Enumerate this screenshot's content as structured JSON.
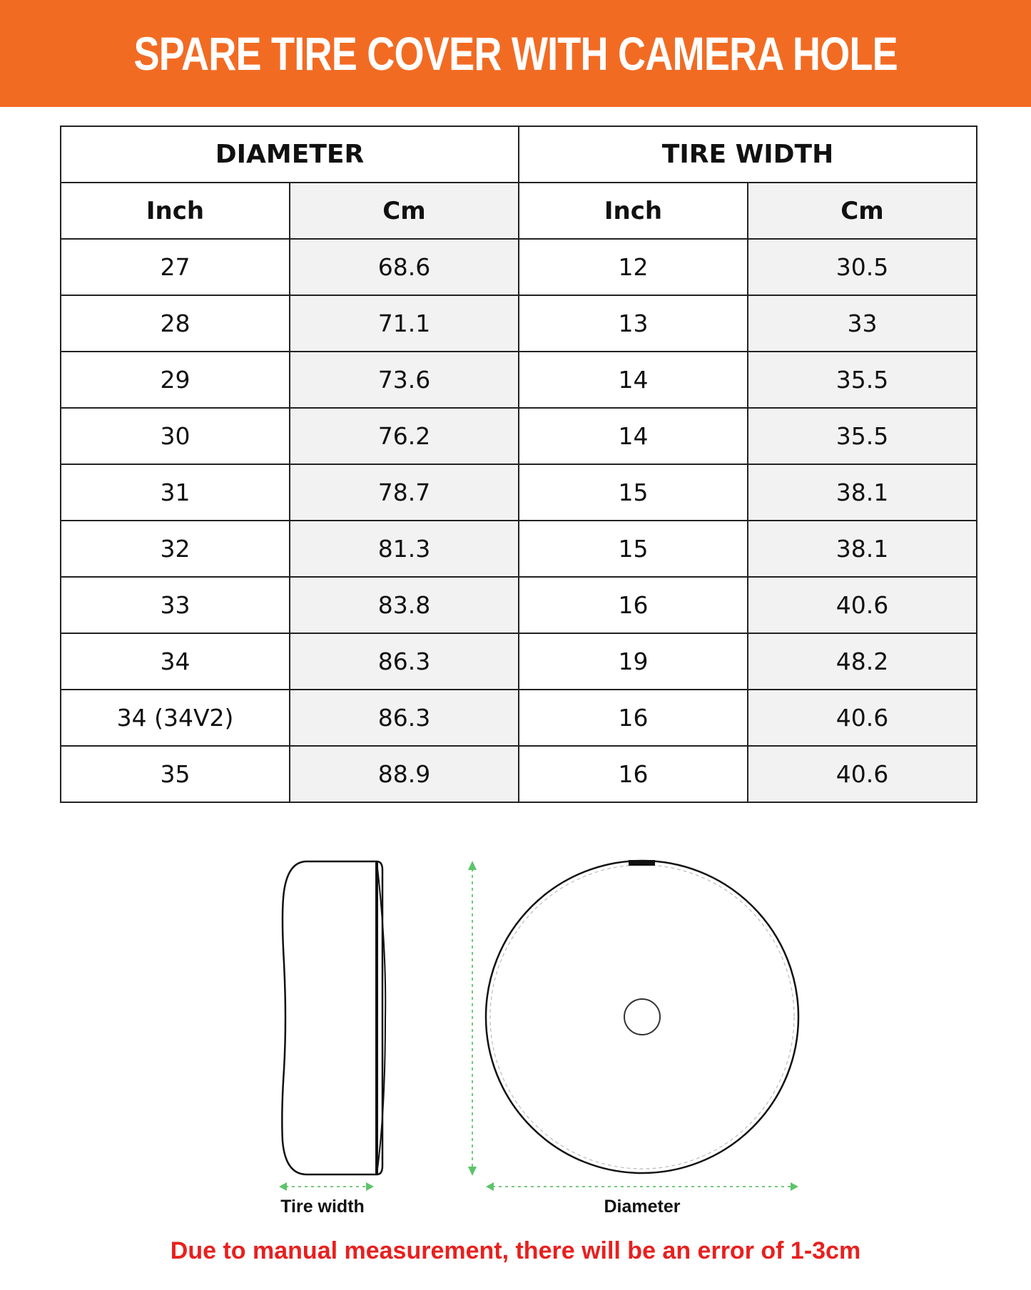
{
  "header": {
    "title": "SPARE TIRE COVER WITH CAMERA HOLE",
    "color": "#F26B23"
  },
  "table": {
    "groups": [
      "DIAMETER",
      "TIRE WIDTH"
    ],
    "columns": [
      "Inch",
      "Cm",
      "Inch",
      "Cm"
    ],
    "rows": [
      [
        "27",
        "68.6",
        "12",
        "30.5"
      ],
      [
        "28",
        "71.1",
        "13",
        "33"
      ],
      [
        "29",
        "73.6",
        "14",
        "35.5"
      ],
      [
        "30",
        "76.2",
        "14",
        "35.5"
      ],
      [
        "31",
        "78.7",
        "15",
        "38.1"
      ],
      [
        "32",
        "81.3",
        "15",
        "38.1"
      ],
      [
        "33",
        "83.8",
        "16",
        "40.6"
      ],
      [
        "34",
        "86.3",
        "19",
        "48.2"
      ],
      [
        "34 (34V2)",
        "86.3",
        "16",
        "40.6"
      ],
      [
        "35",
        "88.9",
        "16",
        "40.6"
      ]
    ]
  },
  "diagram": {
    "tire_width_label": "Tire width",
    "diameter_label": "Diameter",
    "arrow_color": "#5CC46A"
  },
  "note": {
    "text": "Due to manual measurement, there will be an error of 1-3cm",
    "color": "#E8201E"
  }
}
